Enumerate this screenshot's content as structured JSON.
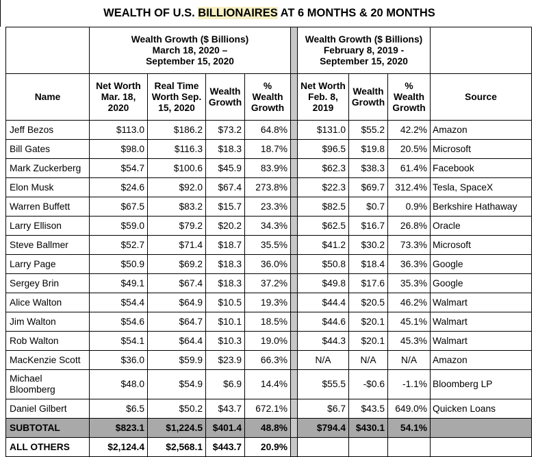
{
  "title": {
    "prefix": "WEALTH OF U.S. ",
    "highlight": "BILLIONAIRES",
    "suffix": " AT 6 MONTHS & 20 MONTHS"
  },
  "groups": {
    "left": "Wealth Growth ($ Billions)\nMarch 18, 2020 –\nSeptember 15, 2020",
    "right": "Wealth Growth ($ Billions)\nFebruary 8, 2019 -\nSeptember 15, 2020"
  },
  "columns": {
    "name": "Name",
    "nw_mar": "Net Worth\nMar. 18,\n2020",
    "rt_sep": "Real Time\nWorth Sep.\n15, 2020",
    "growth1": "Wealth\nGrowth",
    "pct1": "%\nWealth\nGrowth",
    "nw_feb": "Net Worth\nFeb. 8,\n2019",
    "growth2": "Wealth\nGrowth",
    "pct2": "%\nWealth\nGrowth",
    "source": "Source"
  },
  "rows": [
    {
      "name": "Jeff Bezos",
      "nw_mar": "$113.0",
      "rt_sep": "$186.2",
      "growth1": "$73.2",
      "pct1": "64.8%",
      "nw_feb": "$131.0",
      "growth2": "$55.2",
      "pct2": "42.2%",
      "source": "Amazon"
    },
    {
      "name": "Bill Gates",
      "nw_mar": "$98.0",
      "rt_sep": "$116.3",
      "growth1": "$18.3",
      "pct1": "18.7%",
      "nw_feb": "$96.5",
      "growth2": "$19.8",
      "pct2": "20.5%",
      "source": "Microsoft"
    },
    {
      "name": "Mark Zuckerberg",
      "nw_mar": "$54.7",
      "rt_sep": "$100.6",
      "growth1": "$45.9",
      "pct1": "83.9%",
      "nw_feb": "$62.3",
      "growth2": "$38.3",
      "pct2": "61.4%",
      "source": "Facebook"
    },
    {
      "name": "Elon Musk",
      "nw_mar": "$24.6",
      "rt_sep": "$92.0",
      "growth1": "$67.4",
      "pct1": "273.8%",
      "nw_feb": "$22.3",
      "growth2": "$69.7",
      "pct2": "312.4%",
      "source": "Tesla, SpaceX"
    },
    {
      "name": "Warren Buffett",
      "nw_mar": "$67.5",
      "rt_sep": "$83.2",
      "growth1": "$15.7",
      "pct1": "23.3%",
      "nw_feb": "$82.5",
      "growth2": "$0.7",
      "pct2": "0.9%",
      "source": "Berkshire Hathaway"
    },
    {
      "name": "Larry Ellison",
      "nw_mar": "$59.0",
      "rt_sep": "$79.2",
      "growth1": "$20.2",
      "pct1": "34.3%",
      "nw_feb": "$62.5",
      "growth2": "$16.7",
      "pct2": "26.8%",
      "source": "Oracle"
    },
    {
      "name": "Steve Ballmer",
      "nw_mar": "$52.7",
      "rt_sep": "$71.4",
      "growth1": "$18.7",
      "pct1": "35.5%",
      "nw_feb": "$41.2",
      "growth2": "$30.2",
      "pct2": "73.3%",
      "source": "Microsoft"
    },
    {
      "name": "Larry Page",
      "nw_mar": "$50.9",
      "rt_sep": "$69.2",
      "growth1": "$18.3",
      "pct1": "36.0%",
      "nw_feb": "$50.8",
      "growth2": "$18.4",
      "pct2": "36.3%",
      "source": "Google"
    },
    {
      "name": "Sergey Brin",
      "nw_mar": "$49.1",
      "rt_sep": "$67.4",
      "growth1": "$18.3",
      "pct1": "37.2%",
      "nw_feb": "$49.8",
      "growth2": "$17.6",
      "pct2": "35.3%",
      "source": "Google"
    },
    {
      "name": "Alice Walton",
      "nw_mar": "$54.4",
      "rt_sep": "$64.9",
      "growth1": "$10.5",
      "pct1": "19.3%",
      "nw_feb": "$44.4",
      "growth2": "$20.5",
      "pct2": "46.2%",
      "source": "Walmart"
    },
    {
      "name": "Jim Walton",
      "nw_mar": "$54.6",
      "rt_sep": "$64.7",
      "growth1": "$10.1",
      "pct1": "18.5%",
      "nw_feb": "$44.6",
      "growth2": "$20.1",
      "pct2": "45.1%",
      "source": "Walmart"
    },
    {
      "name": "Rob Walton",
      "nw_mar": "$54.1",
      "rt_sep": "$64.4",
      "growth1": "$10.3",
      "pct1": "19.0%",
      "nw_feb": "$44.3",
      "growth2": "$20.1",
      "pct2": "45.3%",
      "source": "Walmart"
    },
    {
      "name": "MacKenzie Scott",
      "nw_mar": "$36.0",
      "rt_sep": "$59.9",
      "growth1": "$23.9",
      "pct1": "66.3%",
      "nw_feb": "N/A",
      "growth2": "N/A",
      "pct2": "N/A",
      "source": "Amazon"
    },
    {
      "name": "Michael\nBloomberg",
      "nw_mar": "$48.0",
      "rt_sep": "$54.9",
      "growth1": "$6.9",
      "pct1": "14.4%",
      "nw_feb": "$55.5",
      "growth2": "-$0.6",
      "pct2": "-1.1%",
      "source": "Bloomberg LP"
    },
    {
      "name": "Daniel Gilbert",
      "nw_mar": "$6.5",
      "rt_sep": "$50.2",
      "growth1": "$43.7",
      "pct1": "672.1%",
      "nw_feb": "$6.7",
      "growth2": "$43.5",
      "pct2": "649.0%",
      "source": "Quicken Loans"
    }
  ],
  "subtotal": {
    "name": "SUBTOTAL",
    "nw_mar": "$823.1",
    "rt_sep": "$1,224.5",
    "growth1": "$401.4",
    "pct1": "48.8%",
    "nw_feb": "$794.4",
    "growth2": "$430.1",
    "pct2": "54.1%",
    "source": ""
  },
  "others": {
    "name": "ALL OTHERS",
    "nw_mar": "$2,124.4",
    "rt_sep": "$2,568.1",
    "growth1": "$443.7",
    "pct1": "20.9%",
    "nw_feb": "",
    "growth2": "",
    "pct2": "",
    "source": ""
  }
}
